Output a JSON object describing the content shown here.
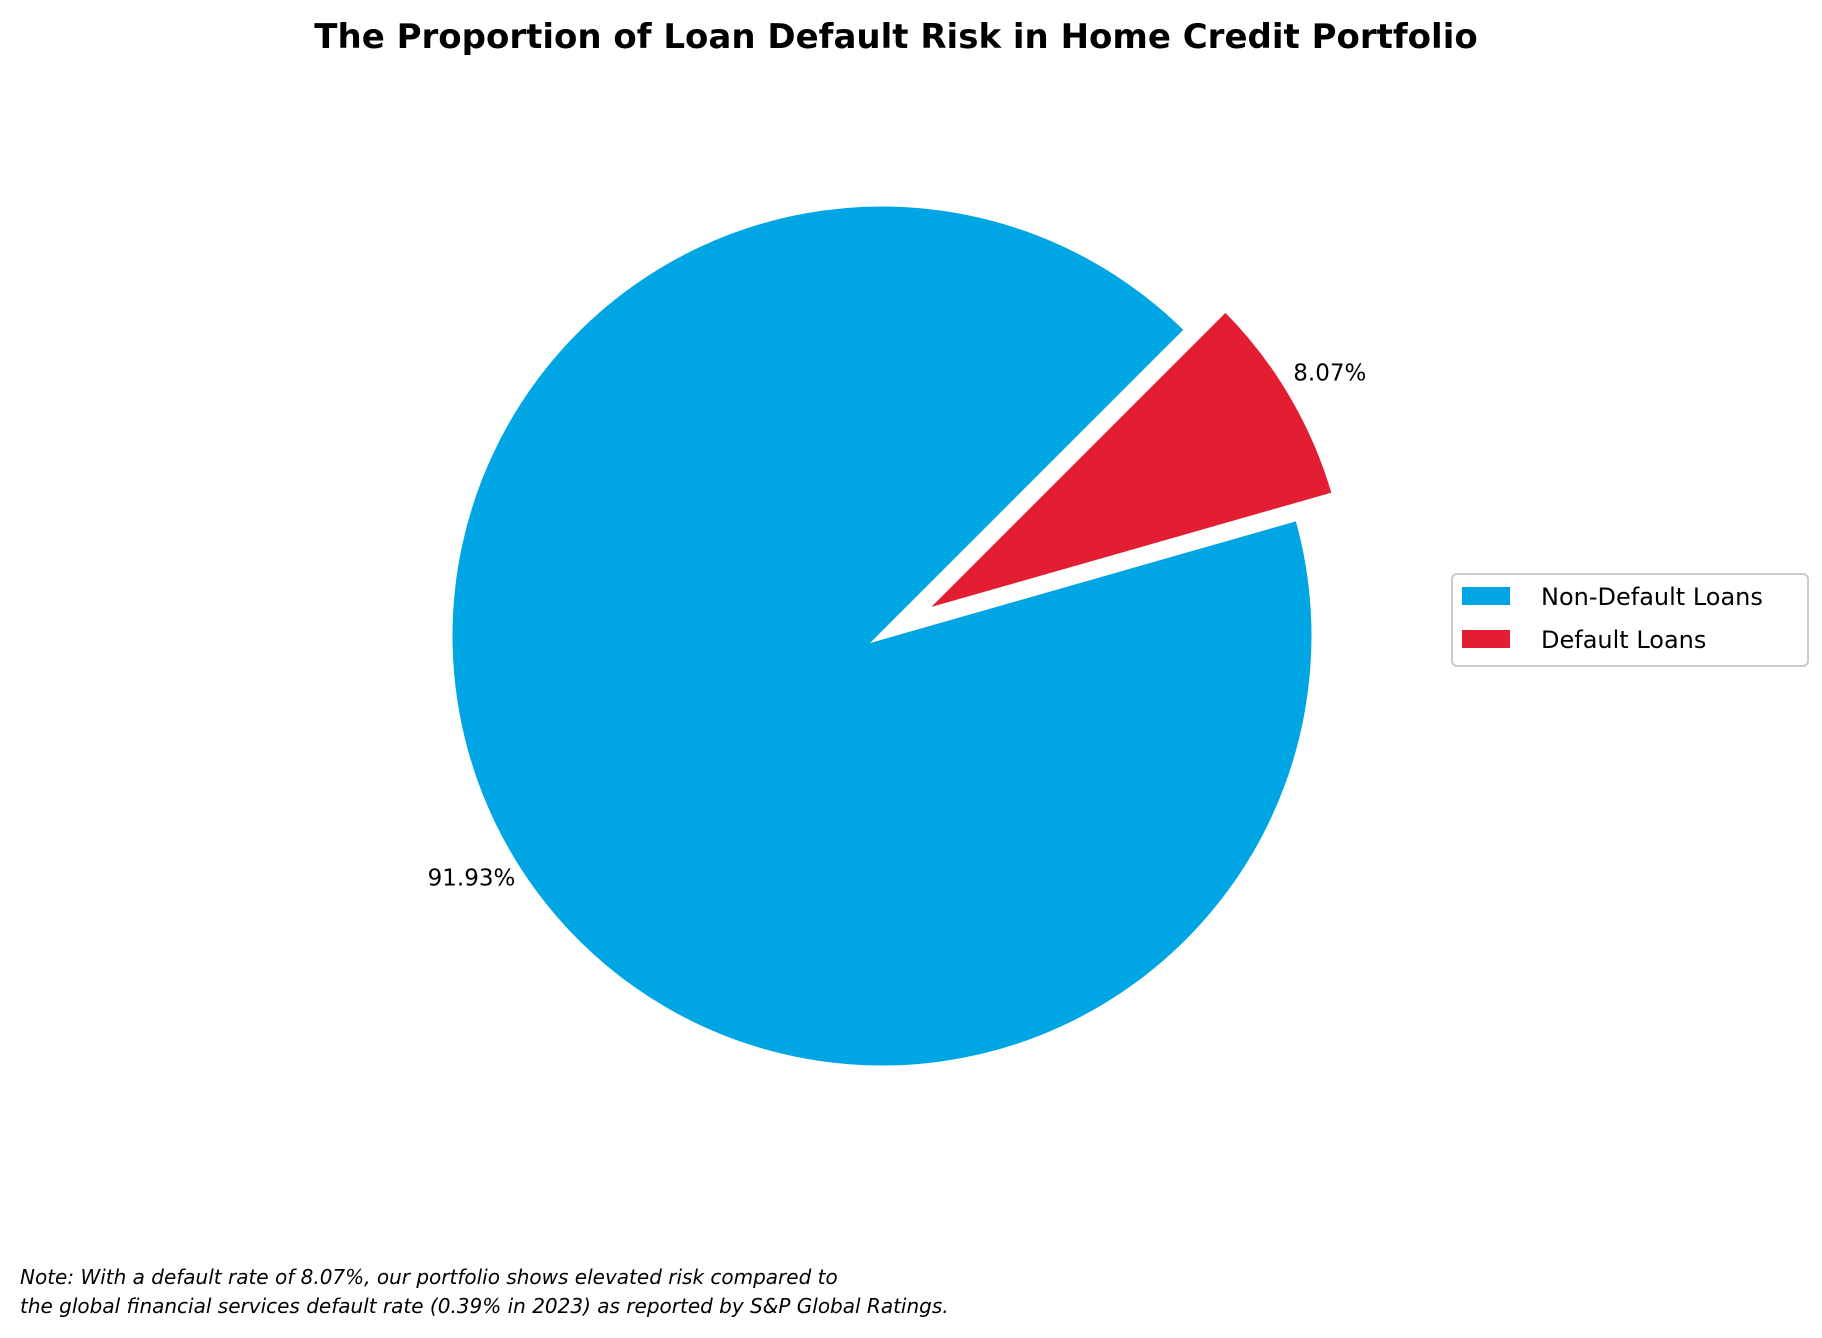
{
  "chart_data": {
    "type": "pie",
    "title": "The Proportion of Loan Default Risk in Home Credit Portfolio",
    "categories": [
      "Non-Default Loans",
      "Default Loans"
    ],
    "values": [
      91.93,
      8.07
    ],
    "labels": [
      "91.93%",
      "8.07%"
    ],
    "colors": [
      "#00A5E3",
      "#E31D32"
    ],
    "explode": [
      0,
      0.1
    ],
    "start_angle_deg": 45,
    "legend_position": "right",
    "legend": [
      "Non-Default Loans",
      "Default Loans"
    ]
  },
  "note": {
    "line1": "Note: With a default rate of 8.07%, our portfolio shows elevated risk compared to",
    "line2": "the global financial services default rate (0.39% in 2023) as reported by S&P Global Ratings."
  }
}
